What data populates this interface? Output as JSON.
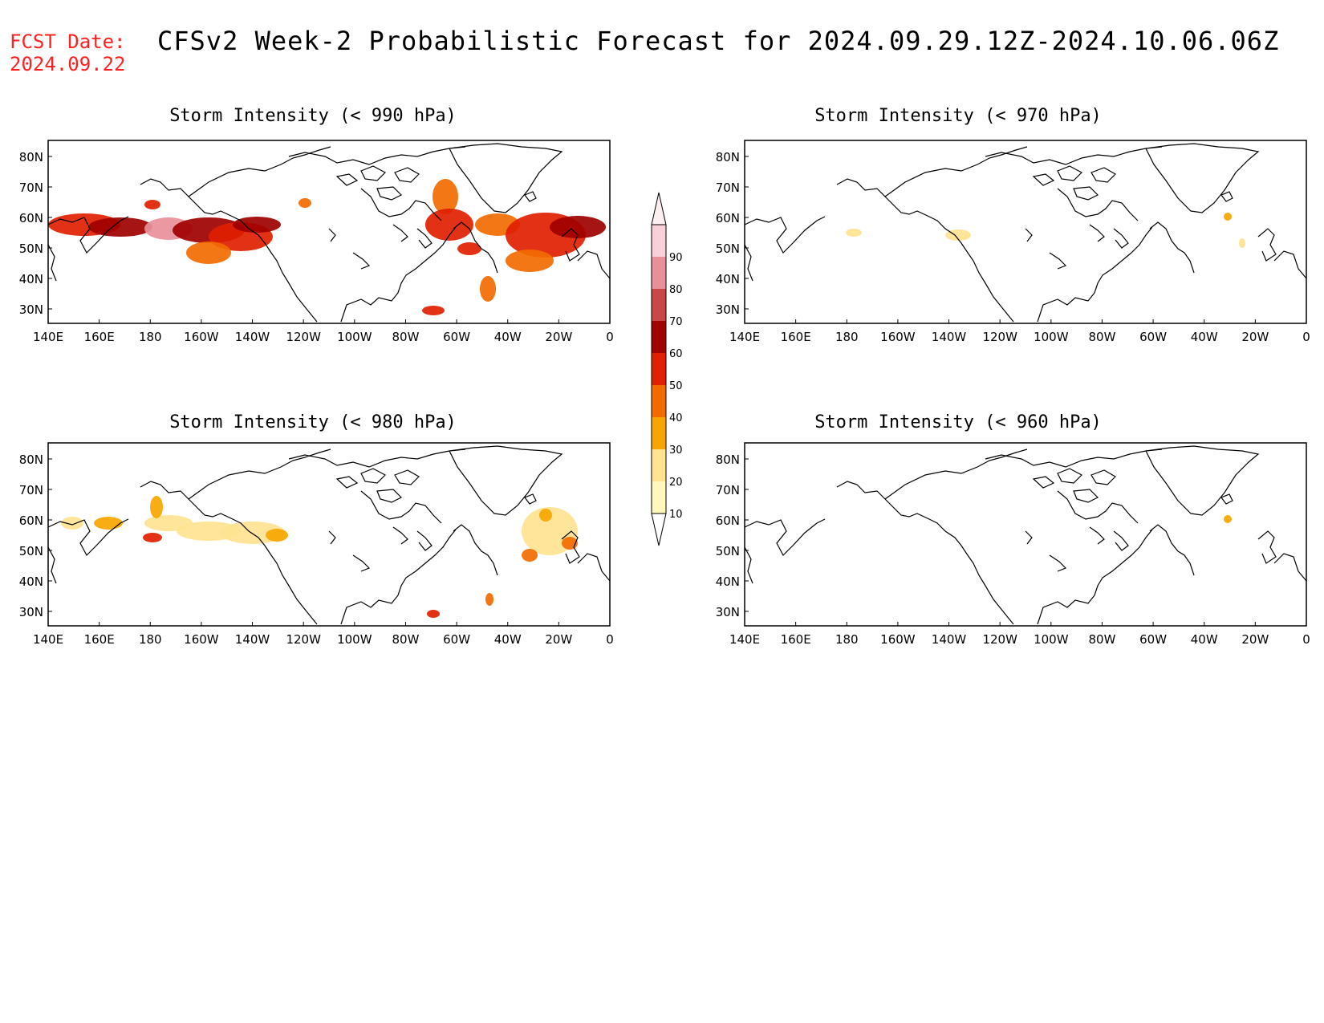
{
  "header": {
    "fcst_label": "FCST Date:",
    "fcst_date": "2024.09.22",
    "title": "CFSv2 Week-2 Probabilistic Forecast for 2024.09.29.12Z-2024.10.06.06Z"
  },
  "lon_labels": [
    "140E",
    "160E",
    "180",
    "160W",
    "140W",
    "120W",
    "100W",
    "80W",
    "60W",
    "40W",
    "20W",
    "0"
  ],
  "lat_labels": [
    "80N",
    "70N",
    "60N",
    "50N",
    "40N",
    "30N"
  ],
  "panels": [
    {
      "id": "p990",
      "title": "Storm Intensity (< 990 hPa)"
    },
    {
      "id": "p970",
      "title": "Storm Intensity (< 970 hPa)"
    },
    {
      "id": "p980",
      "title": "Storm Intensity (< 980 hPa)"
    },
    {
      "id": "p960",
      "title": "Storm Intensity (< 960 hPa)"
    }
  ],
  "colorbar": {
    "levels": [
      "10",
      "20",
      "30",
      "40",
      "50",
      "60",
      "70",
      "80",
      "90"
    ],
    "colors": [
      "#fff7bc",
      "#fee391",
      "#f7a600",
      "#f26b00",
      "#e02000",
      "#a00000",
      "#c84848",
      "#e8909a",
      "#f8d0d8"
    ]
  }
}
